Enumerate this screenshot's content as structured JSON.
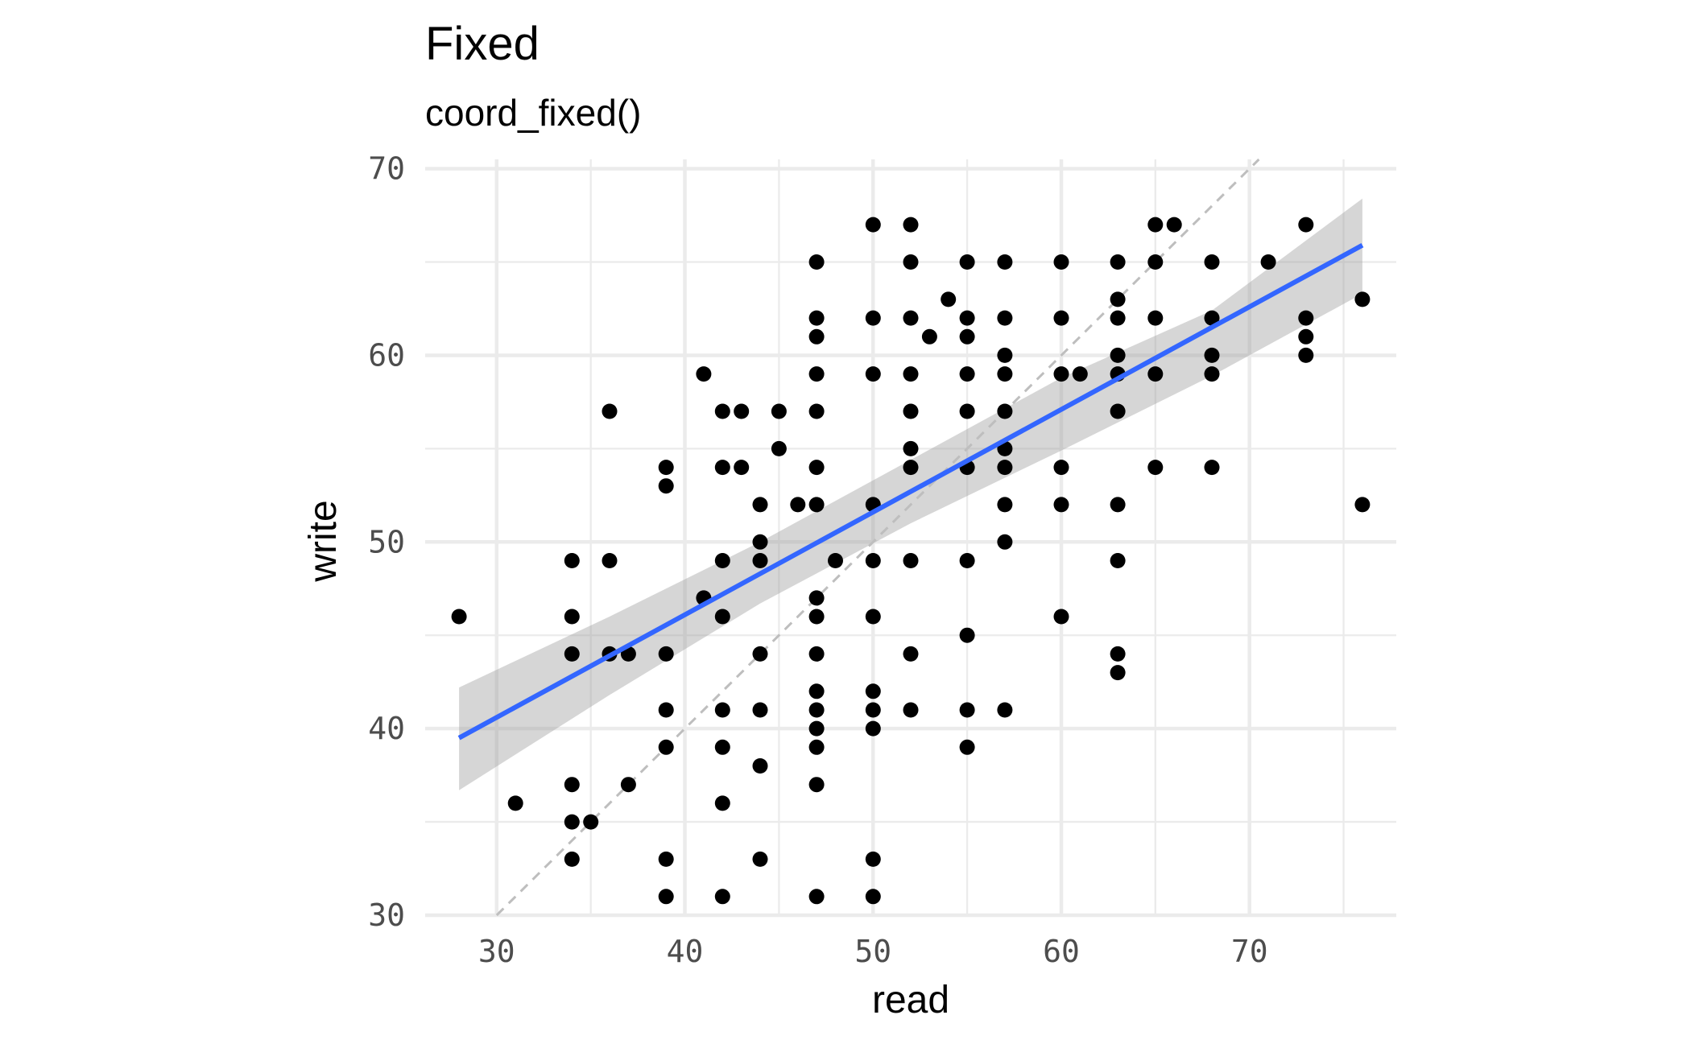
{
  "chart_data": {
    "type": "scatter",
    "title": "Fixed",
    "subtitle": "coord_fixed()",
    "xlabel": "read",
    "ylabel": "write",
    "xlim": [
      26.2,
      77.8
    ],
    "ylim": [
      30.0,
      70.5
    ],
    "x_ticks": [
      "30",
      "40",
      "50",
      "60",
      "70"
    ],
    "y_ticks": [
      "30",
      "40",
      "50",
      "60",
      "70"
    ],
    "grid": true,
    "colors": {
      "points": "#000000",
      "fit_line": "#3366ff",
      "confidence_band": "#999999",
      "reference_line": "#bebebe",
      "grid": "#ebebeb",
      "tick_text": "#4d4d4d"
    },
    "points": [
      [
        28,
        46
      ],
      [
        31,
        36
      ],
      [
        34,
        49
      ],
      [
        34,
        46
      ],
      [
        34,
        44
      ],
      [
        34,
        37
      ],
      [
        34,
        35
      ],
      [
        34,
        33
      ],
      [
        35,
        35
      ],
      [
        36,
        57
      ],
      [
        36,
        49
      ],
      [
        36,
        44
      ],
      [
        37,
        44
      ],
      [
        37,
        37
      ],
      [
        39,
        54
      ],
      [
        39,
        53
      ],
      [
        39,
        44
      ],
      [
        39,
        41
      ],
      [
        39,
        39
      ],
      [
        39,
        33
      ],
      [
        39,
        31
      ],
      [
        41,
        59
      ],
      [
        41,
        47
      ],
      [
        42,
        57
      ],
      [
        42,
        54
      ],
      [
        42,
        49
      ],
      [
        42,
        46
      ],
      [
        42,
        41
      ],
      [
        42,
        39
      ],
      [
        42,
        36
      ],
      [
        42,
        31
      ],
      [
        43,
        57
      ],
      [
        43,
        54
      ],
      [
        44,
        52
      ],
      [
        44,
        50
      ],
      [
        44,
        49
      ],
      [
        44,
        44
      ],
      [
        44,
        41
      ],
      [
        44,
        38
      ],
      [
        44,
        33
      ],
      [
        45,
        57
      ],
      [
        45,
        55
      ],
      [
        46,
        52
      ],
      [
        47,
        65
      ],
      [
        47,
        62
      ],
      [
        47,
        61
      ],
      [
        47,
        59
      ],
      [
        47,
        57
      ],
      [
        47,
        54
      ],
      [
        47,
        52
      ],
      [
        47,
        47
      ],
      [
        47,
        46
      ],
      [
        47,
        44
      ],
      [
        47,
        42
      ],
      [
        47,
        41
      ],
      [
        47,
        40
      ],
      [
        47,
        39
      ],
      [
        47,
        37
      ],
      [
        47,
        31
      ],
      [
        48,
        49
      ],
      [
        50,
        67
      ],
      [
        50,
        62
      ],
      [
        50,
        59
      ],
      [
        50,
        52
      ],
      [
        50,
        49
      ],
      [
        50,
        46
      ],
      [
        50,
        42
      ],
      [
        50,
        41
      ],
      [
        50,
        40
      ],
      [
        50,
        33
      ],
      [
        50,
        31
      ],
      [
        52,
        67
      ],
      [
        52,
        65
      ],
      [
        52,
        62
      ],
      [
        52,
        59
      ],
      [
        52,
        57
      ],
      [
        52,
        55
      ],
      [
        52,
        54
      ],
      [
        52,
        49
      ],
      [
        52,
        44
      ],
      [
        52,
        41
      ],
      [
        53,
        61
      ],
      [
        54,
        63
      ],
      [
        55,
        65
      ],
      [
        55,
        62
      ],
      [
        55,
        61
      ],
      [
        55,
        59
      ],
      [
        55,
        57
      ],
      [
        55,
        54
      ],
      [
        55,
        49
      ],
      [
        55,
        45
      ],
      [
        55,
        41
      ],
      [
        55,
        39
      ],
      [
        57,
        65
      ],
      [
        57,
        62
      ],
      [
        57,
        60
      ],
      [
        57,
        59
      ],
      [
        57,
        57
      ],
      [
        57,
        55
      ],
      [
        57,
        54
      ],
      [
        57,
        52
      ],
      [
        57,
        50
      ],
      [
        57,
        41
      ],
      [
        60,
        65
      ],
      [
        60,
        62
      ],
      [
        60,
        59
      ],
      [
        60,
        54
      ],
      [
        60,
        52
      ],
      [
        60,
        46
      ],
      [
        61,
        59
      ],
      [
        63,
        65
      ],
      [
        63,
        63
      ],
      [
        63,
        62
      ],
      [
        63,
        60
      ],
      [
        63,
        59
      ],
      [
        63,
        57
      ],
      [
        63,
        52
      ],
      [
        63,
        49
      ],
      [
        63,
        44
      ],
      [
        63,
        43
      ],
      [
        65,
        67
      ],
      [
        65,
        65
      ],
      [
        65,
        62
      ],
      [
        65,
        59
      ],
      [
        65,
        54
      ],
      [
        66,
        67
      ],
      [
        68,
        65
      ],
      [
        68,
        62
      ],
      [
        68,
        60
      ],
      [
        68,
        59
      ],
      [
        68,
        54
      ],
      [
        71,
        65
      ],
      [
        73,
        67
      ],
      [
        73,
        62
      ],
      [
        73,
        61
      ],
      [
        73,
        60
      ],
      [
        76,
        63
      ],
      [
        76,
        52
      ]
    ],
    "fit_line": {
      "x": [
        28,
        76
      ],
      "y": [
        39.5,
        65.9
      ]
    },
    "confidence_band": {
      "x": [
        28,
        36,
        44,
        52,
        60,
        68,
        76
      ],
      "upper": [
        42.2,
        46.0,
        50.0,
        54.4,
        58.8,
        62.4,
        68.4
      ],
      "lower": [
        36.7,
        41.8,
        46.7,
        51.0,
        54.9,
        58.9,
        63.3
      ]
    },
    "reference_line": {
      "slope": 1,
      "intercept": 0
    }
  }
}
